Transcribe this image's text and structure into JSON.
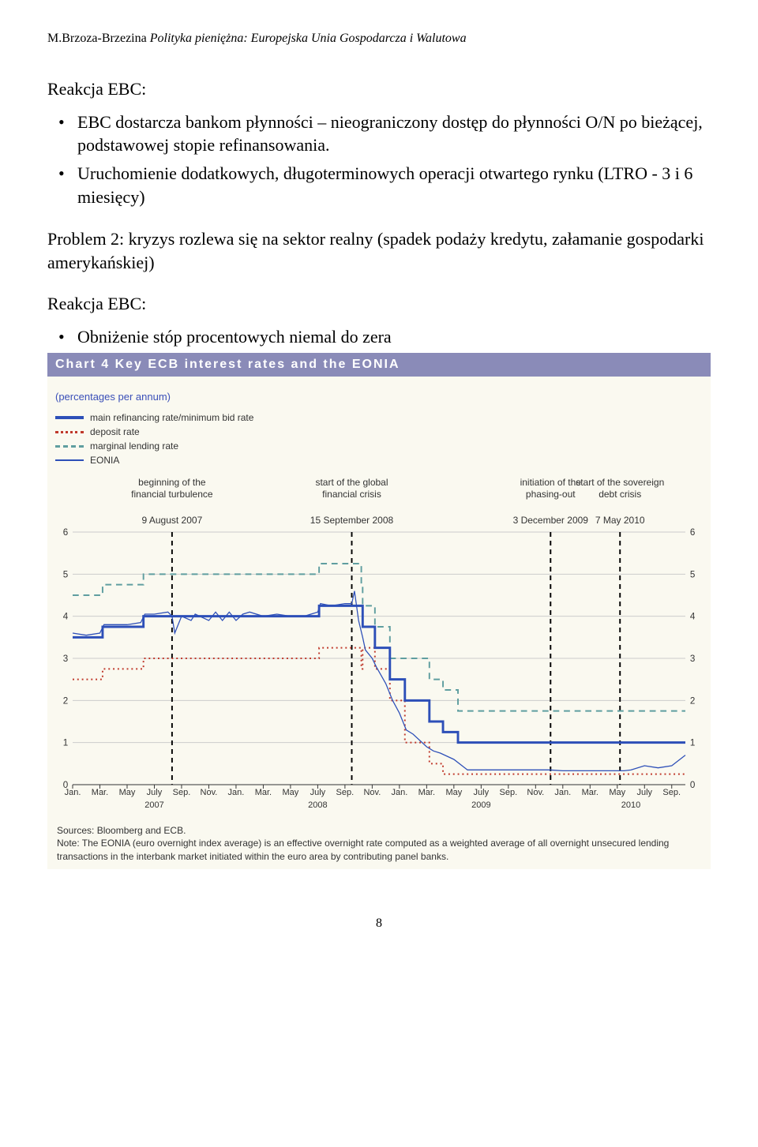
{
  "header": {
    "author": "M.Brzoza-Brzezina",
    "title_italic": "Polityka pieniężna: Europejska Unia Gospodarcza i Walutowa"
  },
  "section1": {
    "heading": "Reakcja EBC:",
    "bullet1": "EBC dostarcza bankom płynności – nieograniczony dostęp do płynności O/N po bieżącej, podstawowej stopie refinansowania.",
    "bullet2": "Uruchomienie dodatkowych, długoterminowych operacji otwartego rynku (LTRO - 3 i 6 miesięcy)"
  },
  "problem2": "Problem 2: kryzys rozlewa się na sektor realny (spadek podaży kredytu, załamanie gospodarki amerykańskiej)",
  "section2": {
    "heading": "Reakcja EBC:",
    "bullet1": "Obniżenie stóp procentowych niemal do zera"
  },
  "chart": {
    "type": "line",
    "title_bar": "Chart 4 Key ECB interest rates and the EONIA",
    "subtitle": "(percentages per annum)",
    "legend": {
      "main_refi": "main refinancing rate/minimum bid rate",
      "deposit": "deposit rate",
      "marginal": "marginal lending rate",
      "eonia": "EONIA"
    },
    "colors": {
      "main_refi": "#2d4fb8",
      "deposit": "#c0392b",
      "marginal": "#5f9ea0",
      "eonia": "#2d4fb8",
      "background": "#faf9f0",
      "grid": "#cccccc",
      "event_line": "#000000"
    },
    "line_widths": {
      "main_refi": 3,
      "deposit": 2,
      "marginal": 2,
      "eonia": 1.3
    },
    "ylim": [
      0,
      6
    ],
    "ytick_step": 1,
    "yticks": [
      0,
      1,
      2,
      3,
      4,
      5,
      6
    ],
    "x_start_month": 0,
    "x_end_month": 45,
    "event_lines": [
      {
        "month": 7.3,
        "label_top": "beginning of the\nfinancial turbulence",
        "date": "9 August 2007"
      },
      {
        "month": 20.5,
        "label_top": "start of the global\nfinancial crisis",
        "date": "15 September 2008"
      },
      {
        "month": 35.1,
        "label_top": "initiation of the\nphasing-out",
        "date": "3 December 2009"
      },
      {
        "month": 40.2,
        "label_top": "start of the sovereign\ndebt crisis",
        "date": "7 May 2010"
      }
    ],
    "x_ticks": [
      {
        "m": 0,
        "l": "Jan."
      },
      {
        "m": 2,
        "l": "Mar."
      },
      {
        "m": 4,
        "l": "May"
      },
      {
        "m": 6,
        "l": "July"
      },
      {
        "m": 8,
        "l": "Sep."
      },
      {
        "m": 10,
        "l": "Nov."
      },
      {
        "m": 12,
        "l": "Jan."
      },
      {
        "m": 14,
        "l": "Mar."
      },
      {
        "m": 16,
        "l": "May"
      },
      {
        "m": 18,
        "l": "July"
      },
      {
        "m": 20,
        "l": "Sep."
      },
      {
        "m": 22,
        "l": "Nov."
      },
      {
        "m": 24,
        "l": "Jan."
      },
      {
        "m": 26,
        "l": "Mar."
      },
      {
        "m": 28,
        "l": "May"
      },
      {
        "m": 30,
        "l": "July"
      },
      {
        "m": 32,
        "l": "Sep."
      },
      {
        "m": 34,
        "l": "Nov."
      },
      {
        "m": 36,
        "l": "Jan."
      },
      {
        "m": 38,
        "l": "Mar."
      },
      {
        "m": 40,
        "l": "May"
      },
      {
        "m": 42,
        "l": "July"
      },
      {
        "m": 44,
        "l": "Sep."
      }
    ],
    "x_year_labels": [
      {
        "m": 6,
        "l": "2007"
      },
      {
        "m": 18,
        "l": "2008"
      },
      {
        "m": 30,
        "l": "2009"
      },
      {
        "m": 41,
        "l": "2010"
      }
    ],
    "series": {
      "main_refi": [
        {
          "m": 0,
          "v": 3.5
        },
        {
          "m": 2.2,
          "v": 3.5
        },
        {
          "m": 2.2,
          "v": 3.75
        },
        {
          "m": 5.2,
          "v": 3.75
        },
        {
          "m": 5.2,
          "v": 4.0
        },
        {
          "m": 18.1,
          "v": 4.0
        },
        {
          "m": 18.1,
          "v": 4.25
        },
        {
          "m": 21.3,
          "v": 4.25
        },
        {
          "m": 21.3,
          "v": 3.75
        },
        {
          "m": 22.2,
          "v": 3.75
        },
        {
          "m": 22.2,
          "v": 3.25
        },
        {
          "m": 23.3,
          "v": 3.25
        },
        {
          "m": 23.3,
          "v": 2.5
        },
        {
          "m": 24.4,
          "v": 2.5
        },
        {
          "m": 24.4,
          "v": 2.0
        },
        {
          "m": 26.2,
          "v": 2.0
        },
        {
          "m": 26.2,
          "v": 1.5
        },
        {
          "m": 27.2,
          "v": 1.5
        },
        {
          "m": 27.2,
          "v": 1.25
        },
        {
          "m": 28.3,
          "v": 1.25
        },
        {
          "m": 28.3,
          "v": 1.0
        },
        {
          "m": 45,
          "v": 1.0
        }
      ],
      "marginal": [
        {
          "m": 0,
          "v": 4.5
        },
        {
          "m": 2.2,
          "v": 4.5
        },
        {
          "m": 2.2,
          "v": 4.75
        },
        {
          "m": 5.2,
          "v": 4.75
        },
        {
          "m": 5.2,
          "v": 5.0
        },
        {
          "m": 18.1,
          "v": 5.0
        },
        {
          "m": 18.1,
          "v": 5.25
        },
        {
          "m": 21.2,
          "v": 5.25
        },
        {
          "m": 21.2,
          "v": 4.75
        },
        {
          "m": 21.3,
          "v": 4.75
        },
        {
          "m": 21.3,
          "v": 4.25
        },
        {
          "m": 22.2,
          "v": 4.25
        },
        {
          "m": 22.2,
          "v": 3.75
        },
        {
          "m": 23.3,
          "v": 3.75
        },
        {
          "m": 23.3,
          "v": 3.0
        },
        {
          "m": 24.4,
          "v": 3.0
        },
        {
          "m": 24.4,
          "v": 3.0
        },
        {
          "m": 26.2,
          "v": 3.0
        },
        {
          "m": 26.2,
          "v": 2.5
        },
        {
          "m": 27.2,
          "v": 2.5
        },
        {
          "m": 27.2,
          "v": 2.25
        },
        {
          "m": 28.3,
          "v": 2.25
        },
        {
          "m": 28.3,
          "v": 1.75
        },
        {
          "m": 45,
          "v": 1.75
        }
      ],
      "deposit": [
        {
          "m": 0,
          "v": 2.5
        },
        {
          "m": 2.2,
          "v": 2.5
        },
        {
          "m": 2.2,
          "v": 2.75
        },
        {
          "m": 5.2,
          "v": 2.75
        },
        {
          "m": 5.2,
          "v": 3.0
        },
        {
          "m": 18.1,
          "v": 3.0
        },
        {
          "m": 18.1,
          "v": 3.25
        },
        {
          "m": 21.2,
          "v": 3.25
        },
        {
          "m": 21.2,
          "v": 2.75
        },
        {
          "m": 21.3,
          "v": 2.75
        },
        {
          "m": 21.3,
          "v": 3.25
        },
        {
          "m": 22.2,
          "v": 3.25
        },
        {
          "m": 22.2,
          "v": 2.75
        },
        {
          "m": 23.3,
          "v": 2.75
        },
        {
          "m": 23.3,
          "v": 2.0
        },
        {
          "m": 24.4,
          "v": 2.0
        },
        {
          "m": 24.4,
          "v": 1.0
        },
        {
          "m": 26.2,
          "v": 1.0
        },
        {
          "m": 26.2,
          "v": 0.5
        },
        {
          "m": 27.2,
          "v": 0.5
        },
        {
          "m": 27.2,
          "v": 0.25
        },
        {
          "m": 45,
          "v": 0.25
        }
      ],
      "eonia": [
        {
          "m": 0,
          "v": 3.6
        },
        {
          "m": 1,
          "v": 3.55
        },
        {
          "m": 2,
          "v": 3.6
        },
        {
          "m": 2.3,
          "v": 3.8
        },
        {
          "m": 3,
          "v": 3.8
        },
        {
          "m": 4,
          "v": 3.8
        },
        {
          "m": 5,
          "v": 3.85
        },
        {
          "m": 5.3,
          "v": 4.05
        },
        {
          "m": 6,
          "v": 4.05
        },
        {
          "m": 7,
          "v": 4.1
        },
        {
          "m": 7.3,
          "v": 4.0
        },
        {
          "m": 7.5,
          "v": 3.6
        },
        {
          "m": 8,
          "v": 4.0
        },
        {
          "m": 8.7,
          "v": 3.9
        },
        {
          "m": 9,
          "v": 4.05
        },
        {
          "m": 10,
          "v": 3.9
        },
        {
          "m": 10.5,
          "v": 4.1
        },
        {
          "m": 11,
          "v": 3.9
        },
        {
          "m": 11.5,
          "v": 4.1
        },
        {
          "m": 12,
          "v": 3.9
        },
        {
          "m": 12.5,
          "v": 4.05
        },
        {
          "m": 13,
          "v": 4.1
        },
        {
          "m": 14,
          "v": 4.0
        },
        {
          "m": 15,
          "v": 4.05
        },
        {
          "m": 16,
          "v": 4.0
        },
        {
          "m": 17,
          "v": 4.0
        },
        {
          "m": 18,
          "v": 4.1
        },
        {
          "m": 18.2,
          "v": 4.3
        },
        {
          "m": 19,
          "v": 4.25
        },
        {
          "m": 20,
          "v": 4.3
        },
        {
          "m": 20.5,
          "v": 4.3
        },
        {
          "m": 20.7,
          "v": 4.6
        },
        {
          "m": 21,
          "v": 3.9
        },
        {
          "m": 21.3,
          "v": 3.5
        },
        {
          "m": 21.5,
          "v": 3.2
        },
        {
          "m": 22,
          "v": 3.0
        },
        {
          "m": 22.3,
          "v": 2.8
        },
        {
          "m": 23,
          "v": 2.4
        },
        {
          "m": 23.5,
          "v": 2.0
        },
        {
          "m": 24,
          "v": 1.7
        },
        {
          "m": 24.5,
          "v": 1.3
        },
        {
          "m": 25,
          "v": 1.2
        },
        {
          "m": 26,
          "v": 0.9
        },
        {
          "m": 26.5,
          "v": 0.8
        },
        {
          "m": 27,
          "v": 0.75
        },
        {
          "m": 28,
          "v": 0.6
        },
        {
          "m": 29,
          "v": 0.35
        },
        {
          "m": 30,
          "v": 0.35
        },
        {
          "m": 31,
          "v": 0.35
        },
        {
          "m": 32,
          "v": 0.35
        },
        {
          "m": 33,
          "v": 0.35
        },
        {
          "m": 34,
          "v": 0.35
        },
        {
          "m": 35,
          "v": 0.35
        },
        {
          "m": 36,
          "v": 0.33
        },
        {
          "m": 37,
          "v": 0.33
        },
        {
          "m": 38,
          "v": 0.33
        },
        {
          "m": 39,
          "v": 0.33
        },
        {
          "m": 40,
          "v": 0.33
        },
        {
          "m": 40.5,
          "v": 0.33
        },
        {
          "m": 41,
          "v": 0.35
        },
        {
          "m": 42,
          "v": 0.45
        },
        {
          "m": 43,
          "v": 0.4
        },
        {
          "m": 44,
          "v": 0.45
        },
        {
          "m": 45,
          "v": 0.7
        }
      ]
    },
    "footer": {
      "sources": "Sources: Bloomberg and ECB.",
      "note": "Note: The EONIA (euro overnight index average) is an effective overnight rate computed as a weighted average of all overnight unsecured lending transactions in the interbank market initiated within the euro area by contributing panel banks."
    }
  },
  "page_number": "8"
}
